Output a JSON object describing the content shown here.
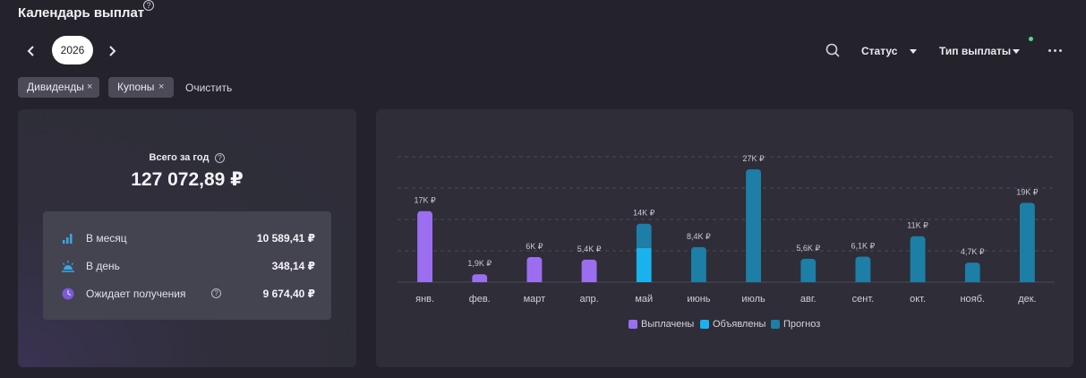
{
  "header": {
    "title": "Календарь выплат",
    "help": "?"
  },
  "year": {
    "value": "2026"
  },
  "toolbar": {
    "status_label": "Статус",
    "type_label": "Тип выплаты"
  },
  "chips": [
    {
      "label": "Дивиденды",
      "x": "×"
    },
    {
      "label": "Купоны",
      "x": "×"
    }
  ],
  "clear_label": "Очистить",
  "summary": {
    "total_label": "Всего за год",
    "total_help": "?",
    "total_value": "127 072,89 ₽",
    "rows": [
      {
        "label": "В месяц",
        "value": "10 589,41 ₽",
        "icon": "bars-icon"
      },
      {
        "label": "В день",
        "value": "348,14 ₽",
        "icon": "sunrise-icon"
      },
      {
        "label": "Ожидает получения",
        "value": "9 674,40 ₽",
        "icon": "clock-icon",
        "help": "?"
      }
    ]
  },
  "colors": {
    "paid": "#9b6ef0",
    "announced": "#19b2ec",
    "forecast": "#1d7ea6"
  },
  "chart_data": {
    "type": "bar",
    "stacked": true,
    "categories": [
      "янв.",
      "фев.",
      "март",
      "апр.",
      "май",
      "июнь",
      "июль",
      "авг.",
      "сент.",
      "окт.",
      "нояб.",
      "дек."
    ],
    "series": [
      {
        "name": "Выплачены",
        "values": [
          17000,
          1900,
          6000,
          5400,
          0,
          0,
          0,
          0,
          0,
          0,
          0,
          0
        ]
      },
      {
        "name": "Объявлены",
        "values": [
          0,
          0,
          0,
          0,
          8200,
          0,
          0,
          0,
          0,
          0,
          0,
          0
        ]
      },
      {
        "name": "Прогноз",
        "values": [
          0,
          0,
          0,
          0,
          5800,
          8400,
          27000,
          5600,
          6100,
          11000,
          4700,
          19000
        ]
      }
    ],
    "data_labels": [
      "17K ₽",
      "1,9K ₽",
      "6K ₽",
      "5,4K ₽",
      "14K ₽",
      "8,4K ₽",
      "27K ₽",
      "5,6K ₽",
      "6,1K ₽",
      "11K ₽",
      "4,7K ₽",
      "19K ₽"
    ],
    "ylim": [
      0,
      30000
    ],
    "grid": true,
    "legend_position": "bottom"
  }
}
